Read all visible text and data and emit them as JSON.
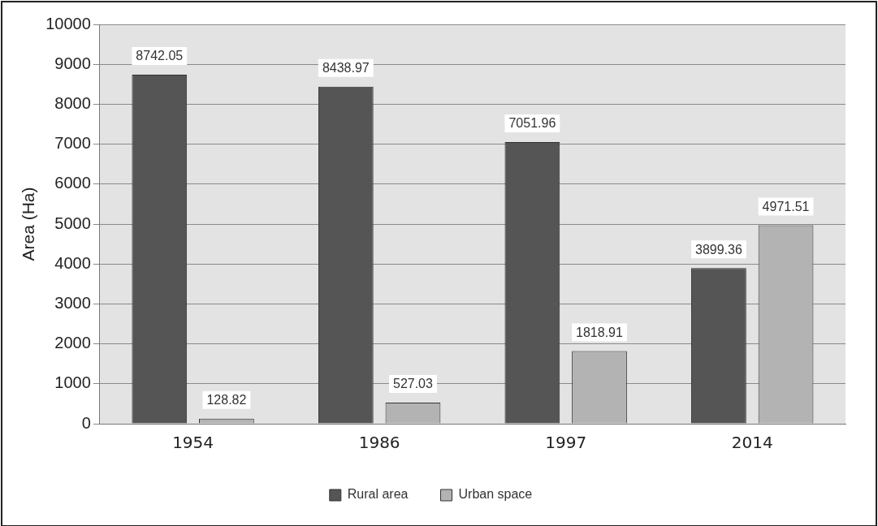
{
  "chart_data": {
    "type": "bar",
    "ylabel": "Area (Ha)",
    "categories": [
      "1954",
      "1986",
      "1997",
      "2014"
    ],
    "series": [
      {
        "name": "Rural area",
        "color": "#555555",
        "values": [
          8742.05,
          8438.97,
          7051.96,
          3899.36
        ]
      },
      {
        "name": "Urban space",
        "color": "#b3b3b3",
        "values": [
          128.82,
          527.03,
          1818.91,
          4971.51
        ]
      }
    ],
    "ylim": [
      0,
      10000
    ],
    "yticks": [
      0,
      1000,
      2000,
      3000,
      4000,
      5000,
      6000,
      7000,
      8000,
      9000,
      10000
    ],
    "grid": "y",
    "legend": "bottom",
    "data_labels": true
  }
}
